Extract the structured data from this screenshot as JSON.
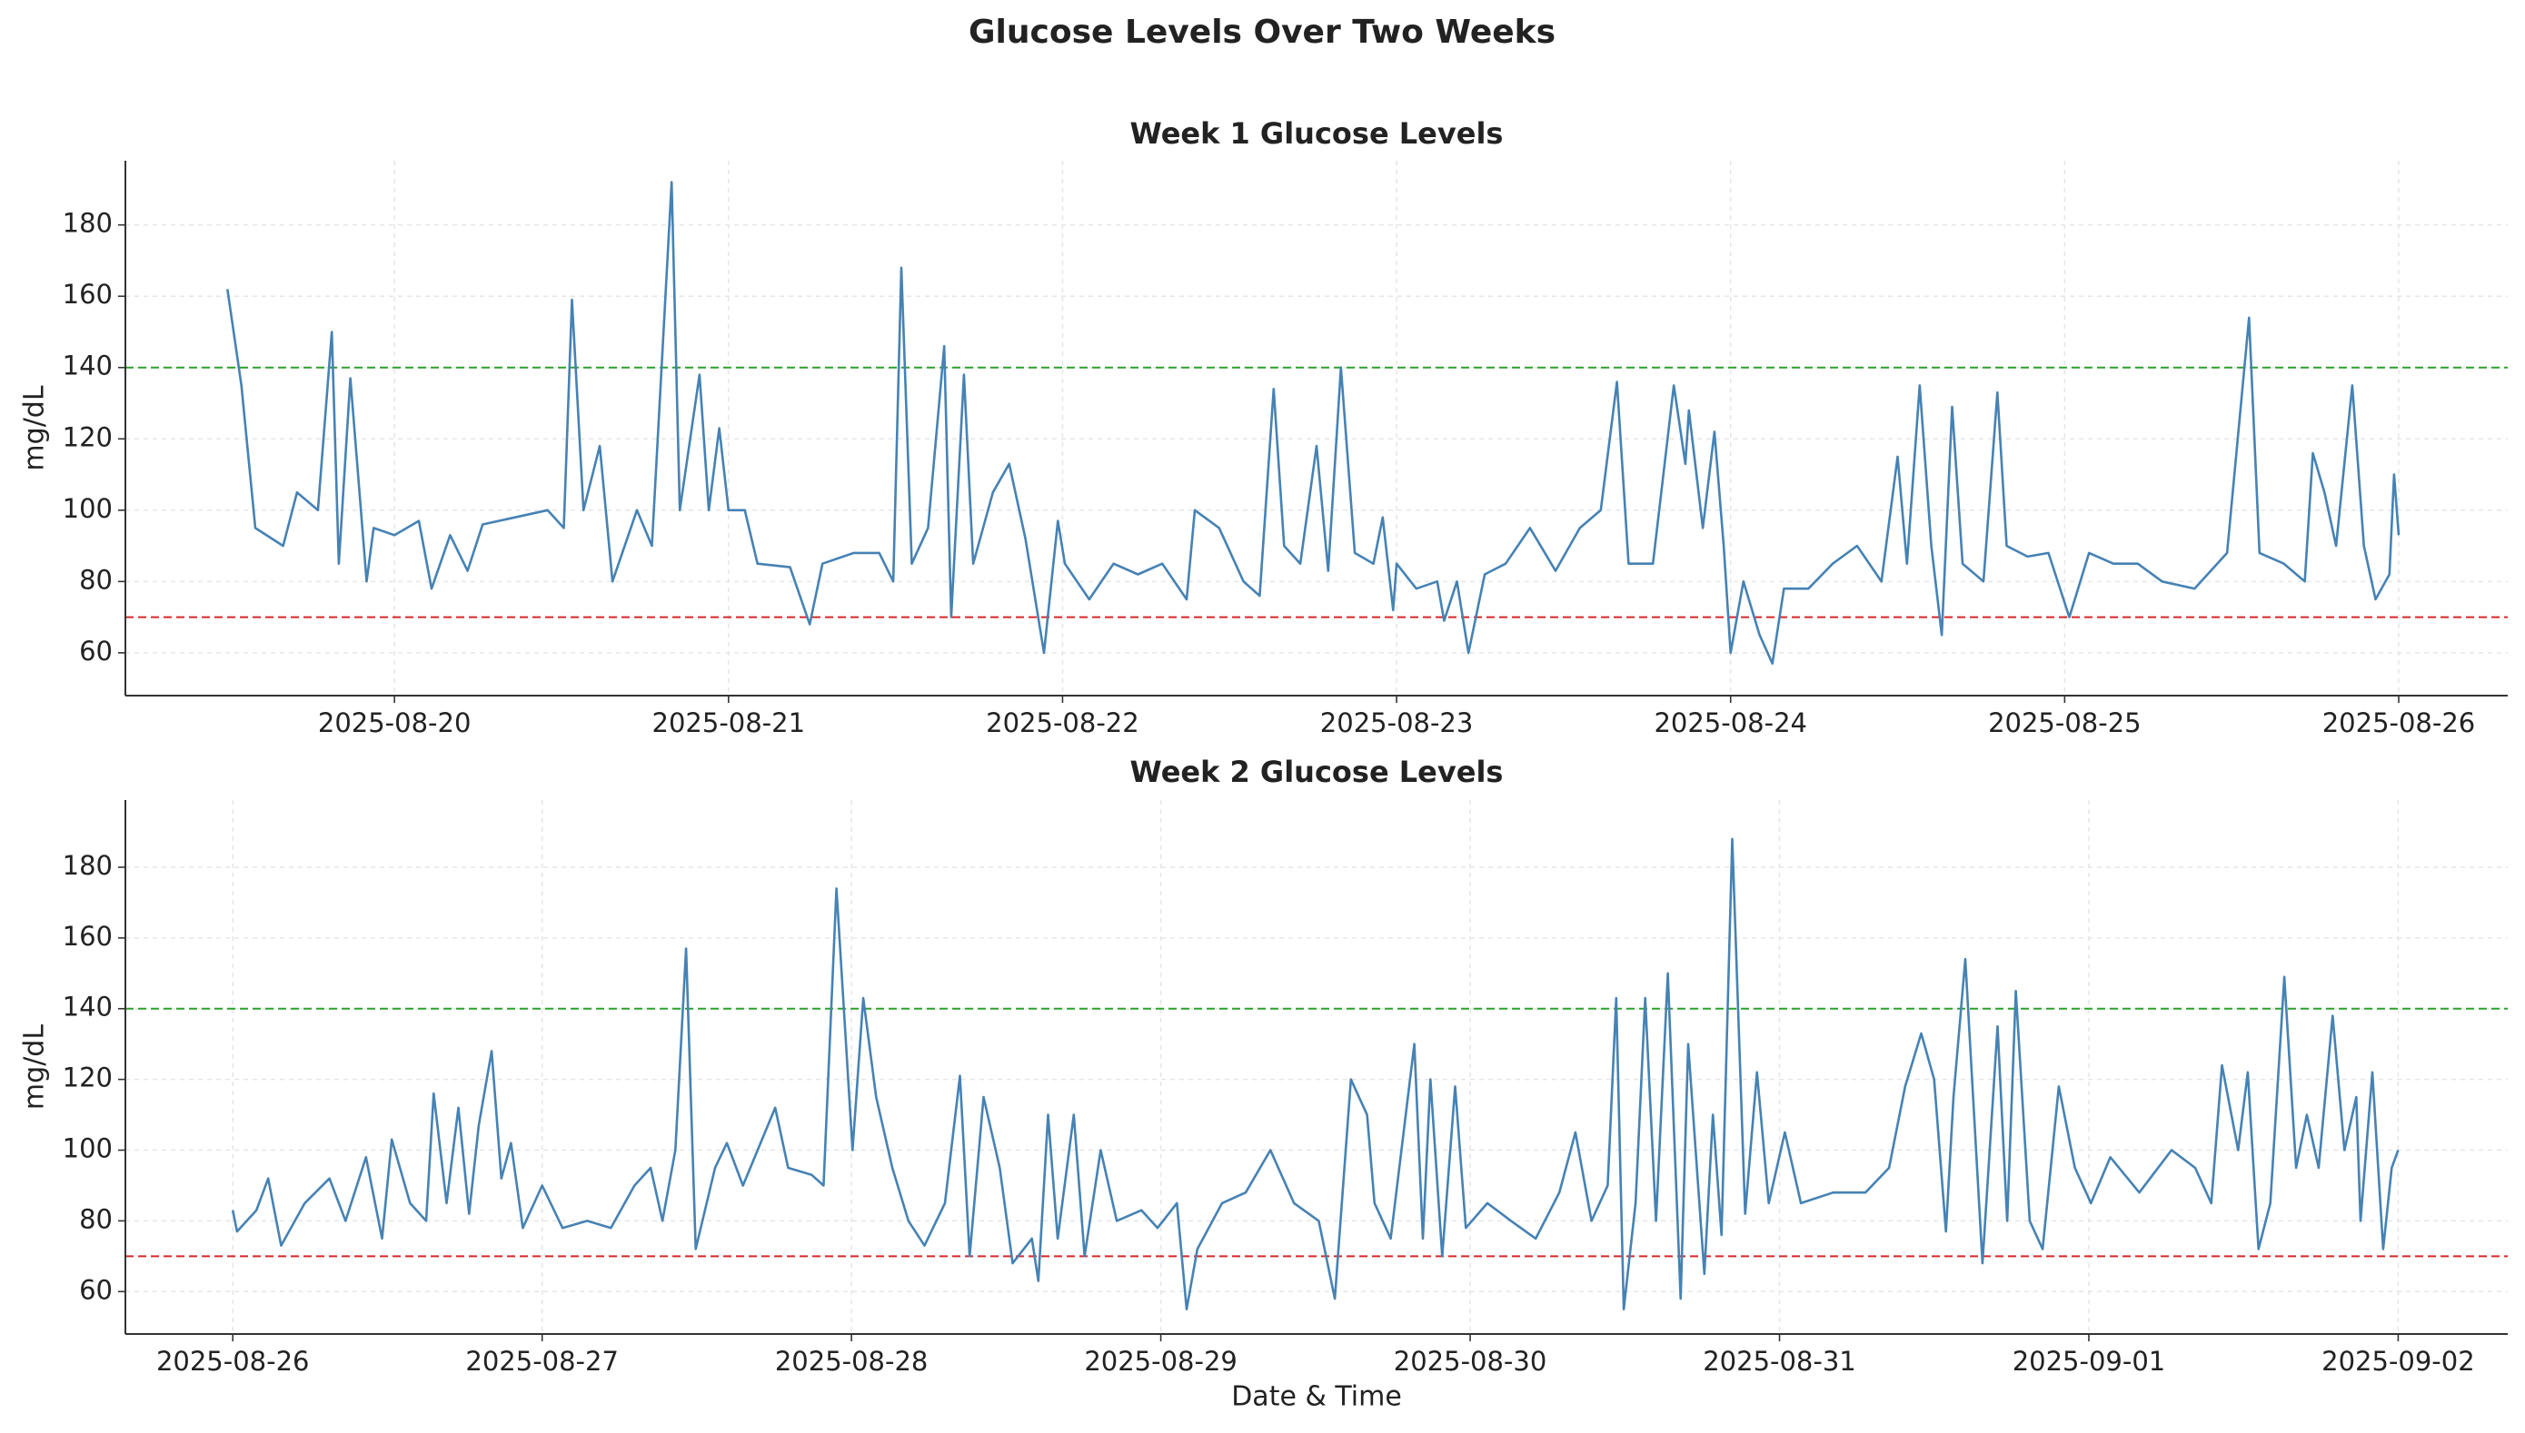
{
  "title": "Glucose Levels Over Two Weeks",
  "chart_data": [
    {
      "type": "line",
      "title": "Week 1 Glucose Levels",
      "ylabel": "mg/dL",
      "color": "#4682b4",
      "grid": true,
      "xlim": [
        "2025-08-19T04:40",
        "2025-08-26T07:50"
      ],
      "xticks": [
        "2025-08-20",
        "2025-08-21",
        "2025-08-22",
        "2025-08-23",
        "2025-08-24",
        "2025-08-25",
        "2025-08-26"
      ],
      "ylim": [
        48,
        198
      ],
      "yticks": [
        60,
        80,
        100,
        120,
        140,
        160,
        180
      ],
      "hlines": [
        {
          "value": 140,
          "color": "#2ca02c"
        },
        {
          "value": 70,
          "color": "#d62728"
        }
      ],
      "x": [
        "2025-08-19T12:00",
        "2025-08-19T13:00",
        "2025-08-19T14:00",
        "2025-08-19T16:00",
        "2025-08-19T17:00",
        "2025-08-19T18:30",
        "2025-08-19T19:30",
        "2025-08-19T20:00",
        "2025-08-19T20:50",
        "2025-08-19T22:00",
        "2025-08-19T22:30",
        "2025-08-20T00:00",
        "2025-08-20T01:45",
        "2025-08-20T02:40",
        "2025-08-20T04:00",
        "2025-08-20T05:15",
        "2025-08-20T06:20",
        "2025-08-20T08:40",
        "2025-08-20T11:00",
        "2025-08-20T12:10",
        "2025-08-20T12:45",
        "2025-08-20T13:35",
        "2025-08-20T14:45",
        "2025-08-20T15:40",
        "2025-08-20T17:25",
        "2025-08-20T18:30",
        "2025-08-20T19:55",
        "2025-08-20T20:30",
        "2025-08-20T21:55",
        "2025-08-20T22:35",
        "2025-08-20T23:20",
        "2025-08-21T00:00",
        "2025-08-21T01:10",
        "2025-08-21T02:05",
        "2025-08-21T04:25",
        "2025-08-21T05:50",
        "2025-08-21T06:45",
        "2025-08-21T09:00",
        "2025-08-21T10:50",
        "2025-08-21T11:50",
        "2025-08-21T12:25",
        "2025-08-21T13:10",
        "2025-08-21T14:20",
        "2025-08-21T15:30",
        "2025-08-21T16:00",
        "2025-08-21T16:55",
        "2025-08-21T17:35",
        "2025-08-21T19:00",
        "2025-08-21T20:10",
        "2025-08-21T21:20",
        "2025-08-21T22:40",
        "2025-08-21T23:40",
        "2025-08-22T00:10",
        "2025-08-22T01:55",
        "2025-08-22T03:40",
        "2025-08-22T05:25",
        "2025-08-22T07:10",
        "2025-08-22T08:55",
        "2025-08-22T09:30",
        "2025-08-22T11:15",
        "2025-08-22T13:00",
        "2025-08-22T14:10",
        "2025-08-22T15:10",
        "2025-08-22T15:55",
        "2025-08-22T17:05",
        "2025-08-22T18:15",
        "2025-08-22T19:05",
        "2025-08-22T20:00",
        "2025-08-22T21:00",
        "2025-08-22T22:20",
        "2025-08-22T23:00",
        "2025-08-22T23:45",
        "2025-08-23T00:00",
        "2025-08-23T01:25",
        "2025-08-23T02:55",
        "2025-08-23T03:25",
        "2025-08-23T04:20",
        "2025-08-23T05:10",
        "2025-08-23T06:20",
        "2025-08-23T07:50",
        "2025-08-23T09:35",
        "2025-08-23T11:25",
        "2025-08-23T13:10",
        "2025-08-23T14:40",
        "2025-08-23T15:50",
        "2025-08-23T16:40",
        "2025-08-23T18:25",
        "2025-08-23T19:55",
        "2025-08-23T20:45",
        "2025-08-23T21:00",
        "2025-08-23T22:00",
        "2025-08-23T22:50",
        "2025-08-23T23:30",
        "2025-08-24T00:00",
        "2025-08-24T00:55",
        "2025-08-24T02:05",
        "2025-08-24T03:00",
        "2025-08-24T03:50",
        "2025-08-24T05:35",
        "2025-08-24T07:20",
        "2025-08-24T09:05",
        "2025-08-24T10:50",
        "2025-08-24T12:00",
        "2025-08-24T12:40",
        "2025-08-24T13:35",
        "2025-08-24T14:25",
        "2025-08-24T15:10",
        "2025-08-24T15:55",
        "2025-08-24T16:40",
        "2025-08-24T18:10",
        "2025-08-24T19:10",
        "2025-08-24T19:50",
        "2025-08-24T21:20",
        "2025-08-24T22:50",
        "2025-08-25T00:20",
        "2025-08-25T01:45",
        "2025-08-25T03:30",
        "2025-08-25T05:15",
        "2025-08-25T07:00",
        "2025-08-25T09:20",
        "2025-08-25T11:40",
        "2025-08-25T13:15",
        "2025-08-25T14:00",
        "2025-08-25T15:45",
        "2025-08-25T17:15",
        "2025-08-25T17:50",
        "2025-08-25T18:40",
        "2025-08-25T19:30",
        "2025-08-25T20:40",
        "2025-08-25T21:30",
        "2025-08-25T22:20",
        "2025-08-25T23:20",
        "2025-08-25T23:40",
        "2025-08-26T00:00"
      ],
      "values": [
        162,
        135,
        95,
        90,
        105,
        100,
        150,
        85,
        137,
        80,
        95,
        93,
        97,
        78,
        93,
        83,
        96,
        98,
        100,
        95,
        159,
        100,
        118,
        80,
        100,
        90,
        192,
        100,
        138,
        100,
        123,
        100,
        100,
        85,
        84,
        68,
        85,
        88,
        88,
        80,
        168,
        85,
        95,
        146,
        70,
        138,
        85,
        105,
        113,
        92,
        60,
        97,
        85,
        75,
        85,
        82,
        85,
        75,
        100,
        95,
        80,
        76,
        134,
        90,
        85,
        118,
        83,
        140,
        88,
        85,
        98,
        72,
        85,
        78,
        80,
        69,
        80,
        60,
        82,
        85,
        95,
        83,
        95,
        100,
        136,
        85,
        85,
        135,
        113,
        128,
        95,
        122,
        90,
        60,
        80,
        65,
        57,
        78,
        78,
        85,
        90,
        80,
        115,
        85,
        135,
        90,
        65,
        129,
        85,
        80,
        133,
        90,
        87,
        88,
        70,
        88,
        85,
        85,
        80,
        78,
        88,
        154,
        88,
        85,
        80,
        116,
        105,
        90,
        135,
        90,
        75,
        82,
        110,
        93
      ]
    },
    {
      "type": "line",
      "title": "Week 2 Glucose Levels",
      "ylabel": "mg/dL",
      "xlabel": "Date & Time",
      "color": "#4682b4",
      "grid": true,
      "xlim": [
        "2025-08-25T15:40",
        "2025-09-02T08:30"
      ],
      "xticks": [
        "2025-08-26",
        "2025-08-27",
        "2025-08-28",
        "2025-08-29",
        "2025-08-30",
        "2025-08-31",
        "2025-09-01",
        "2025-09-02"
      ],
      "ylim": [
        48,
        199
      ],
      "yticks": [
        60,
        80,
        100,
        120,
        140,
        160,
        180
      ],
      "hlines": [
        {
          "value": 140,
          "color": "#2ca02c"
        },
        {
          "value": 70,
          "color": "#d62728"
        }
      ],
      "x": [
        "2025-08-26T00:00",
        "2025-08-26T00:20",
        "2025-08-26T01:50",
        "2025-08-26T02:45",
        "2025-08-26T03:45",
        "2025-08-26T05:35",
        "2025-08-26T07:30",
        "2025-08-26T08:45",
        "2025-08-26T10:20",
        "2025-08-26T11:35",
        "2025-08-26T12:20",
        "2025-08-26T13:45",
        "2025-08-26T15:00",
        "2025-08-26T15:35",
        "2025-08-26T16:35",
        "2025-08-26T17:30",
        "2025-08-26T18:20",
        "2025-08-26T19:05",
        "2025-08-26T20:05",
        "2025-08-26T20:50",
        "2025-08-26T21:35",
        "2025-08-26T22:30",
        "2025-08-27T00:00",
        "2025-08-27T01:35",
        "2025-08-27T03:30",
        "2025-08-27T05:20",
        "2025-08-27T07:10",
        "2025-08-27T08:25",
        "2025-08-27T09:20",
        "2025-08-27T10:20",
        "2025-08-27T11:10",
        "2025-08-27T11:55",
        "2025-08-27T13:25",
        "2025-08-27T14:20",
        "2025-08-27T15:35",
        "2025-08-27T18:05",
        "2025-08-27T19:05",
        "2025-08-27T20:55",
        "2025-08-27T21:50",
        "2025-08-27T22:50",
        "2025-08-28T00:05",
        "2025-08-28T00:55",
        "2025-08-28T01:55",
        "2025-08-28T03:10",
        "2025-08-28T04:25",
        "2025-08-28T05:40",
        "2025-08-28T07:15",
        "2025-08-28T08:25",
        "2025-08-28T09:10",
        "2025-08-28T10:15",
        "2025-08-28T11:30",
        "2025-08-28T12:30",
        "2025-08-28T14:00",
        "2025-08-28T14:30",
        "2025-08-28T15:15",
        "2025-08-28T16:00",
        "2025-08-28T17:15",
        "2025-08-28T18:05",
        "2025-08-28T19:20",
        "2025-08-28T20:35",
        "2025-08-28T22:30",
        "2025-08-28T23:45",
        "2025-08-29T01:15",
        "2025-08-29T02:00",
        "2025-08-29T02:50",
        "2025-08-29T04:45",
        "2025-08-29T06:35",
        "2025-08-29T08:30",
        "2025-08-29T10:20",
        "2025-08-29T12:15",
        "2025-08-29T13:30",
        "2025-08-29T14:45",
        "2025-08-29T16:00",
        "2025-08-29T16:35",
        "2025-08-29T17:50",
        "2025-08-29T19:40",
        "2025-08-29T20:20",
        "2025-08-29T20:55",
        "2025-08-29T21:50",
        "2025-08-29T22:50",
        "2025-08-29T23:40",
        "2025-08-30T01:20",
        "2025-08-30T03:10",
        "2025-08-30T05:05",
        "2025-08-30T06:55",
        "2025-08-30T08:10",
        "2025-08-30T09:25",
        "2025-08-30T10:40",
        "2025-08-30T11:20",
        "2025-08-30T11:55",
        "2025-08-30T12:50",
        "2025-08-30T13:35",
        "2025-08-30T14:25",
        "2025-08-30T15:20",
        "2025-08-30T16:20",
        "2025-08-30T16:55",
        "2025-08-30T18:10",
        "2025-08-30T18:50",
        "2025-08-30T19:30",
        "2025-08-30T20:20",
        "2025-08-30T21:20",
        "2025-08-30T22:15",
        "2025-08-30T23:10",
        "2025-08-31T00:25",
        "2025-08-31T01:40",
        "2025-08-31T04:10",
        "2025-08-31T06:40",
        "2025-08-31T08:30",
        "2025-08-31T09:45",
        "2025-08-31T11:00",
        "2025-08-31T12:00",
        "2025-08-31T12:55",
        "2025-08-31T13:30",
        "2025-08-31T14:25",
        "2025-08-31T15:45",
        "2025-08-31T16:55",
        "2025-08-31T17:40",
        "2025-08-31T18:20",
        "2025-08-31T19:25",
        "2025-08-31T20:25",
        "2025-08-31T21:40",
        "2025-08-31T22:55",
        "2025-09-01T00:10",
        "2025-09-01T01:40",
        "2025-09-01T03:55",
        "2025-09-01T06:25",
        "2025-09-01T08:15",
        "2025-09-01T09:30",
        "2025-09-01T10:20",
        "2025-09-01T11:35",
        "2025-09-01T12:20",
        "2025-09-01T13:10",
        "2025-09-01T14:05",
        "2025-09-01T15:10",
        "2025-09-01T16:05",
        "2025-09-01T16:55",
        "2025-09-01T17:50",
        "2025-09-01T18:55",
        "2025-09-01T19:50",
        "2025-09-01T20:45",
        "2025-09-01T21:05",
        "2025-09-01T22:00",
        "2025-09-01T22:50",
        "2025-09-01T23:30",
        "2025-09-02T00:00"
      ],
      "values": [
        83,
        77,
        83,
        92,
        73,
        85,
        92,
        80,
        98,
        75,
        103,
        85,
        80,
        116,
        85,
        112,
        82,
        107,
        128,
        92,
        102,
        78,
        90,
        78,
        80,
        78,
        90,
        95,
        80,
        100,
        157,
        72,
        95,
        102,
        90,
        112,
        95,
        93,
        90,
        174,
        100,
        143,
        115,
        95,
        80,
        73,
        85,
        121,
        70,
        115,
        95,
        68,
        75,
        63,
        110,
        75,
        110,
        70,
        100,
        80,
        83,
        78,
        85,
        55,
        72,
        85,
        88,
        100,
        85,
        80,
        58,
        120,
        110,
        85,
        75,
        130,
        75,
        120,
        70,
        118,
        78,
        85,
        80,
        75,
        88,
        105,
        80,
        90,
        143,
        55,
        85,
        143,
        80,
        150,
        58,
        130,
        65,
        110,
        76,
        188,
        82,
        122,
        85,
        105,
        85,
        88,
        88,
        95,
        118,
        133,
        120,
        77,
        115,
        154,
        68,
        135,
        80,
        145,
        80,
        72,
        118,
        95,
        85,
        98,
        88,
        100,
        95,
        85,
        124,
        100,
        122,
        72,
        85,
        149,
        95,
        110,
        95,
        138,
        100,
        115,
        80,
        122,
        72,
        95,
        100
      ]
    }
  ]
}
